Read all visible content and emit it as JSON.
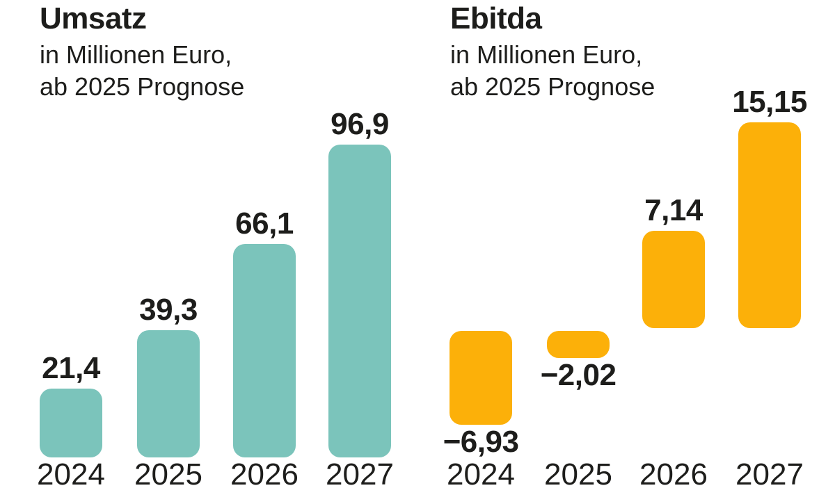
{
  "page": {
    "background_color": "#ffffff",
    "text_color": "#1d1d1b"
  },
  "chart_data": [
    {
      "type": "bar",
      "title": "Umsatz",
      "subtitle_line1": "in Millionen Euro,",
      "subtitle_line2": "ab 2025 Prognose",
      "categories": [
        "2024",
        "2025",
        "2026",
        "2027"
      ],
      "values": [
        21.4,
        39.3,
        66.1,
        96.9
      ],
      "value_labels": [
        "21,4",
        "39,3",
        "66,1",
        "96,9"
      ],
      "bar_color": "#7bc4bb",
      "ylabel": "Millionen Euro",
      "xlabel": "",
      "ylim": [
        0,
        100
      ],
      "grid": false,
      "legend": "none",
      "axis_lines": false
    },
    {
      "type": "bar",
      "title": "Ebitda",
      "subtitle_line1": "in Millionen Euro,",
      "subtitle_line2": "ab 2025 Prognose",
      "categories": [
        "2024",
        "2025",
        "2026",
        "2027"
      ],
      "values": [
        -6.93,
        -2.02,
        7.14,
        15.15
      ],
      "value_labels": [
        "−6,93",
        "−2,02",
        "7,14",
        "15,15"
      ],
      "bar_color": "#fcb009",
      "ylabel": "Millionen Euro",
      "xlabel": "",
      "ylim": [
        -8,
        16
      ],
      "grid": false,
      "legend": "none",
      "axis_lines": false
    }
  ]
}
